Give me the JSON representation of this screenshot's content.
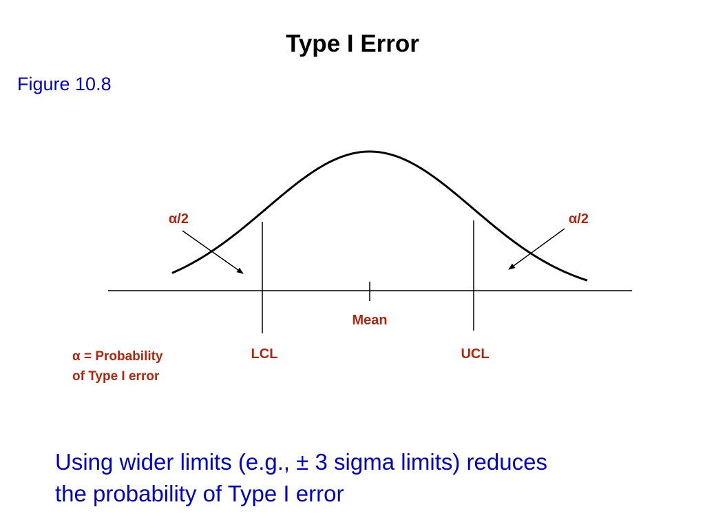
{
  "slide": {
    "title": "Type I Error",
    "figure_label": "Figure 10.8"
  },
  "diagram": {
    "left_tail_label": "α/2",
    "right_tail_label": "α/2",
    "center_label": "Mean",
    "lower_limit_label": "LCL",
    "upper_limit_label": "UCL"
  },
  "legend": {
    "line1": "α = Probability",
    "line2": "of Type I error"
  },
  "caption": {
    "line1": "Using wider limits (e.g., ± 3 sigma limits) reduces",
    "line2": "the probability of Type I error"
  },
  "colors": {
    "title": "#000000",
    "figure_label": "#0000cc",
    "annotation": "#b3260e",
    "caption": "#0000cc",
    "lines": "#000000"
  }
}
